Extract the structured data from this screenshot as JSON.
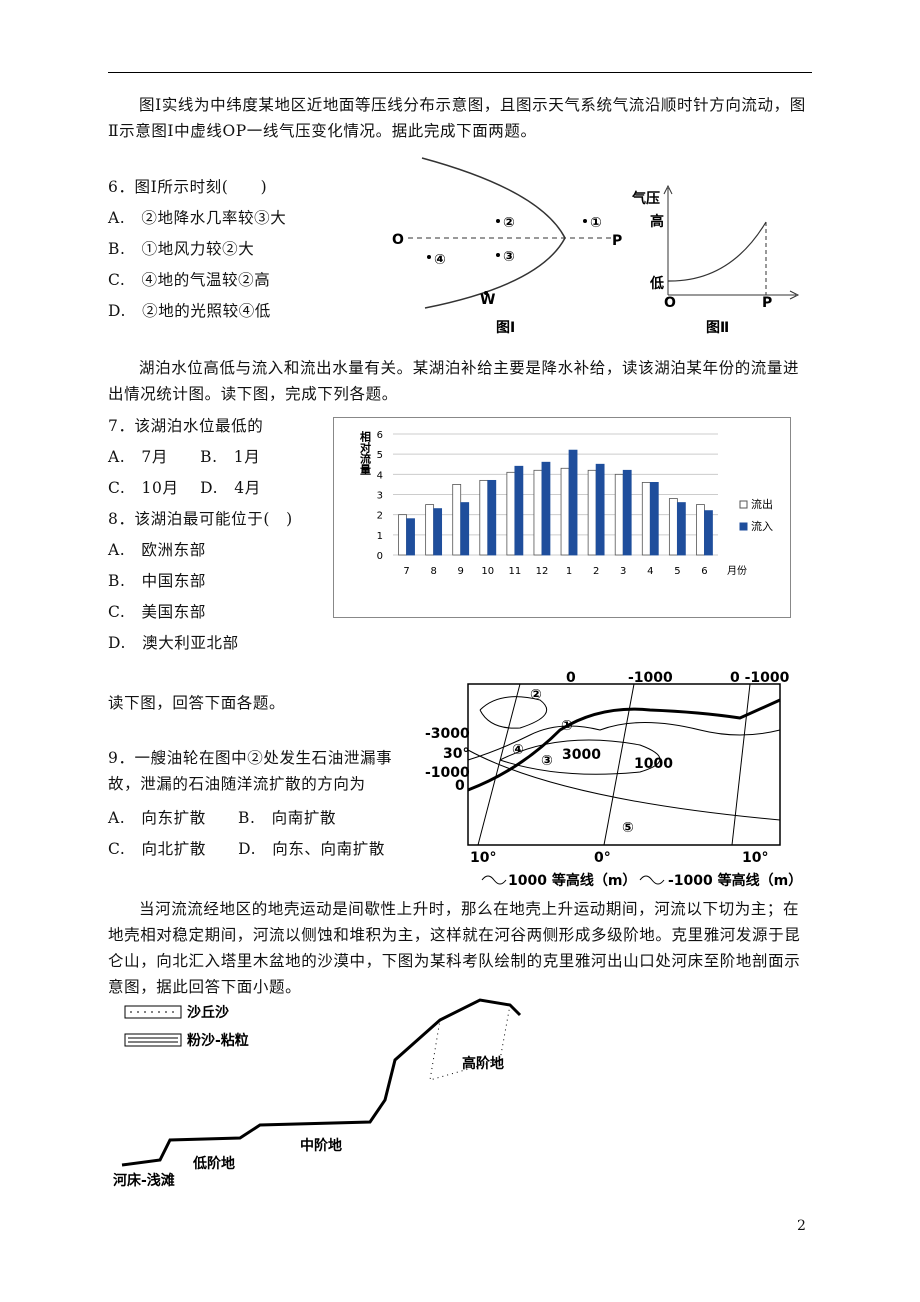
{
  "intro1": "图Ⅰ实线为中纬度某地区近地面等压线分布示意图，且图示天气系统气流沿顺时针方向流动，图Ⅱ示意图Ⅰ中虚线OP一线气压变化情况。据此完成下面两题。",
  "q6": {
    "stem": "6．图Ⅰ所示时刻(　　)",
    "options": [
      "A.　②地降水几率较③大",
      "B.　①地风力较②大",
      "C.　④地的气温较②高",
      "D.　②地的光照较④低"
    ]
  },
  "fig1": {
    "labels": [
      "O",
      "P",
      "②",
      "①",
      "④",
      "③",
      "W"
    ],
    "caption": "图Ⅰ"
  },
  "fig2": {
    "labels": [
      "气压",
      "高",
      "低",
      "O",
      "P"
    ],
    "caption": "图Ⅱ"
  },
  "intro2": "湖泊水位高低与流入和流出水量有关。某湖泊补给主要是降水补给，读该湖泊某年份的流量进出情况统计图。读下图，完成下列各题。",
  "q7": {
    "stem": "7．该湖泊水位最低的",
    "options": [
      "A.　7月　　B.　1月",
      "C.　10月　 D.　4月"
    ]
  },
  "q8": {
    "stem": "8．该湖泊最可能位于(　)",
    "options": [
      "A.　欧洲东部",
      "B.　中国东部",
      "C.　美国东部",
      "D.　澳大利亚北部"
    ]
  },
  "chart_data": {
    "type": "bar",
    "y_label": "相对流量",
    "x_label": "月份",
    "categories": [
      "7",
      "8",
      "9",
      "10",
      "11",
      "12",
      "1",
      "2",
      "3",
      "4",
      "5",
      "6"
    ],
    "series": [
      {
        "name": "流出",
        "color": "#ffffff",
        "values": [
          2.0,
          2.5,
          3.5,
          3.7,
          4.1,
          4.2,
          4.3,
          4.2,
          4.0,
          3.6,
          2.8,
          2.5
        ]
      },
      {
        "name": "流入",
        "color": "#1f4e9c",
        "values": [
          1.8,
          2.3,
          2.6,
          3.7,
          4.4,
          4.6,
          5.2,
          4.5,
          4.2,
          3.6,
          2.6,
          2.2
        ]
      }
    ],
    "ylim": [
      0,
      6
    ],
    "yticks": [
      0,
      1,
      2,
      3,
      4,
      5,
      6
    ],
    "grid": true
  },
  "intro3": "读下图，回答下面各题。",
  "q9": {
    "stem": "9．一艘油轮在图中②处发生石油泄漏事故，泄漏的石油随洋流扩散的方向为",
    "options": [
      "A.　向东扩散　　B.　向南扩散",
      "C.　向北扩散　　D.　向东、向南扩散"
    ]
  },
  "map": {
    "labels": [
      "0",
      "-1000",
      "0 -1000",
      "-3000",
      "30°",
      "-1000",
      "0",
      "②",
      "①",
      "④",
      "③",
      "3000",
      "1000",
      "⑤",
      "10°",
      "0°",
      "10°"
    ],
    "legend": [
      "1000 等高线（m）",
      "-1000 等高线（m）"
    ]
  },
  "intro4": "当河流流经地区的地壳运动是间歇性上升时，那么在地壳上升运动期间，河流以下切为主；在地壳相对稳定期间，河流以侧蚀和堆积为主，这样就在河谷两侧形成多级阶地。克里雅河发源于昆仑山，向北汇入塔里木盆地的沙漠中，下图为某科考队绘制的克里雅河出山口处河床至阶地剖面示意图，据此回答下面小题。",
  "profile": {
    "legend": [
      "沙丘沙",
      "粉沙-粘粒"
    ],
    "labels": [
      "高阶地",
      "中阶地",
      "低阶地",
      "河床-浅滩"
    ]
  },
  "page_number": "2"
}
